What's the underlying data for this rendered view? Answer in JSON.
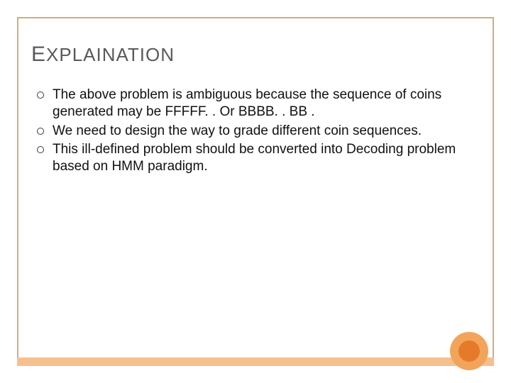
{
  "colors": {
    "frame_thin": "#d9a97a",
    "frame_bottom": "#f6c08e",
    "circle_outer": "#f2a45a",
    "circle_inner": "#e57b2a",
    "title_color": "#5a5a5a",
    "text_color": "#111111",
    "background": "#ffffff"
  },
  "typography": {
    "title_fontsize": 26,
    "title_cap_fontsize": 30,
    "body_fontsize": 19,
    "font_family": "Arial"
  },
  "layout": {
    "slide_inset": 24,
    "frame_bottom_height": 12,
    "circle_outer_diameter": 54,
    "circle_inner_diameter": 30
  },
  "title": {
    "cap": "E",
    "rest": "XPLAINATION"
  },
  "bullets": [
    {
      "text": "The above problem is ambiguous because the sequence of coins generated may be FFFFF. . Or BBBB. . BB ."
    },
    {
      "text": "We need to design the way to grade different coin sequences."
    },
    {
      "text": "This ill-defined problem should be converted into Decoding problem based on HMM paradigm."
    }
  ]
}
